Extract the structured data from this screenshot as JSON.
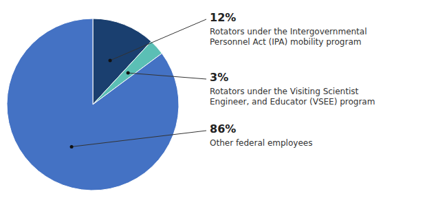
{
  "chart_data": {
    "type": "pie",
    "categories": [
      "Rotators under the Intergovernmental\nPersonnel Act (IPA) mobility program",
      "Rotators under the Visiting Scientist\nEngineer, and Educator (VSEE) program",
      "Other federal employees"
    ],
    "values": [
      12,
      3,
      86
    ],
    "value_labels": [
      "12%",
      "3%",
      "86%"
    ],
    "colors": [
      "#1a3f6f",
      "#5bbfb5",
      "#4472c4"
    ],
    "data_labels": true
  }
}
